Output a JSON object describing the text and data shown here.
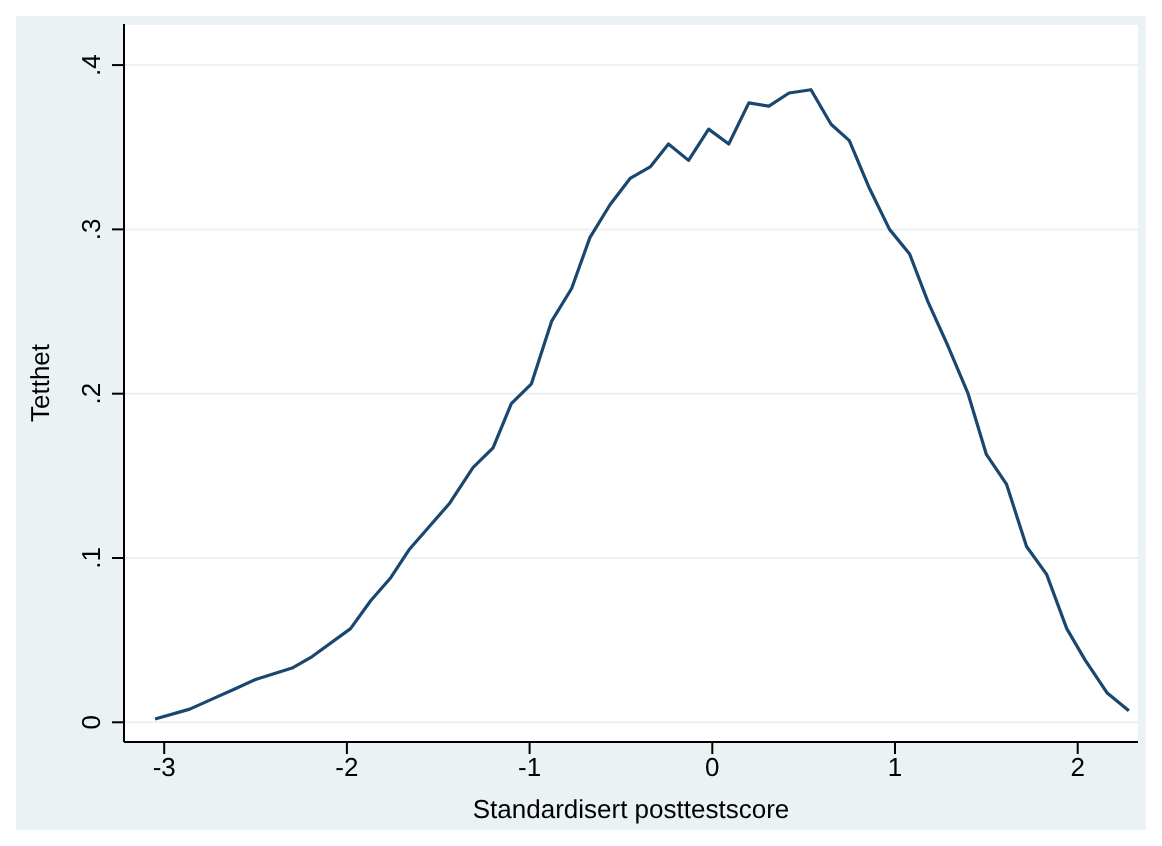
{
  "chart_data": {
    "type": "line",
    "xlabel": "Standardisert posttestscore",
    "ylabel": "Tetthet",
    "x": [
      -3.05,
      -2.86,
      -2.72,
      -2.62,
      -2.5,
      -2.3,
      -2.19,
      -1.98,
      -1.87,
      -1.76,
      -1.66,
      -1.55,
      -1.44,
      -1.31,
      -1.2,
      -1.1,
      -0.99,
      -0.88,
      -0.77,
      -0.67,
      -0.56,
      -0.45,
      -0.34,
      -0.24,
      -0.13,
      -0.02,
      0.09,
      0.2,
      0.31,
      0.42,
      0.54,
      0.65,
      0.75,
      0.86,
      0.97,
      1.08,
      1.18,
      1.29,
      1.4,
      1.5,
      1.61,
      1.72,
      1.83,
      1.94,
      2.04,
      2.16,
      2.28
    ],
    "series": [
      {
        "color": "#1a476f",
        "values": [
          0.002,
          0.008,
          0.015,
          0.02,
          0.026,
          0.033,
          0.04,
          0.057,
          0.074,
          0.088,
          0.105,
          0.119,
          0.133,
          0.155,
          0.167,
          0.194,
          0.206,
          0.244,
          0.264,
          0.295,
          0.315,
          0.331,
          0.338,
          0.352,
          0.342,
          0.361,
          0.352,
          0.377,
          0.375,
          0.383,
          0.385,
          0.364,
          0.354,
          0.325,
          0.3,
          0.285,
          0.256,
          0.229,
          0.2,
          0.163,
          0.145,
          0.107,
          0.09,
          0.057,
          0.038,
          0.018,
          0.007
        ]
      }
    ],
    "xlim": [
      -3.22,
      2.33
    ],
    "xticks": [
      -3,
      -2,
      -1,
      0,
      1,
      2
    ],
    "ylim": [
      -0.012,
      0.425
    ],
    "yticks": [
      0,
      {
        "value": 0.1,
        "label": ".1"
      },
      {
        "value": 0.2,
        "label": ".2"
      },
      {
        "value": 0.3,
        "label": ".3"
      },
      {
        "value": 0.4,
        "label": ".4"
      }
    ],
    "grid": "y",
    "marker": "none",
    "line_style": "solid",
    "legend": false
  }
}
